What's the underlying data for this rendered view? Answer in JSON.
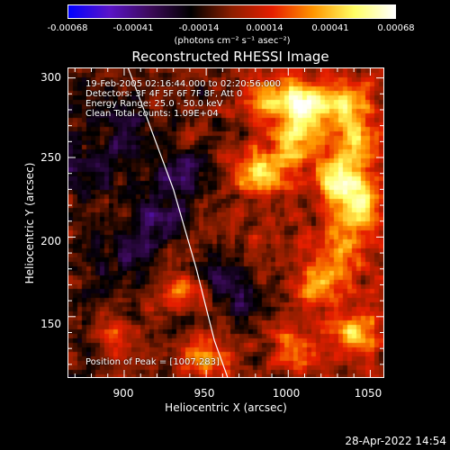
{
  "colorbar": {
    "ticks": [
      "-0.00068",
      "-0.00041",
      "-0.00014",
      "0.00014",
      "0.00041",
      "0.00068"
    ],
    "units": "(photons cm⁻² s⁻¹ asec⁻²)",
    "colors": [
      "#0000ff",
      "#5a14c8",
      "#3c0a5a",
      "#000000",
      "#8c1e00",
      "#e61e00",
      "#ff9600",
      "#ffff64",
      "#ffffff"
    ]
  },
  "chart_data": {
    "type": "heatmap",
    "title": "Reconstructed RHESSI Image",
    "xlabel": "Heliocentric X (arcsec)",
    "ylabel": "Heliocentric Y (arcsec)",
    "xlim": [
      866,
      1058
    ],
    "ylim": [
      112,
      306
    ],
    "xticks": [
      900,
      950,
      1000,
      1050
    ],
    "yticks": [
      150,
      200,
      250,
      300
    ],
    "value_range": [
      -0.00068,
      0.00068
    ],
    "peak": [
      1007,
      283
    ],
    "annotations": [
      "19-Feb-2005 02:16:44.000 to 02:20:56.000",
      "Detectors: 3F 4F 5F 6F 7F 8F, Att 0",
      "Energy Range: 25.0 - 50.0 keV",
      "Clean    Total counts: 1.09E+04"
    ],
    "peak_label": "Position of Peak = [1007,283]",
    "limb_curve": {
      "x": [
        865,
        890,
        912,
        930,
        944,
        955,
        963
      ],
      "y": [
        385,
        340,
        280,
        230,
        180,
        135,
        112
      ]
    },
    "bright_sources": [
      {
        "x": 1010,
        "y": 285,
        "strength": 1.0
      },
      {
        "x": 983,
        "y": 240,
        "strength": 0.9
      },
      {
        "x": 1030,
        "y": 235,
        "strength": 0.95
      },
      {
        "x": 1045,
        "y": 220,
        "strength": 0.7
      },
      {
        "x": 1005,
        "y": 262,
        "strength": 0.75
      },
      {
        "x": 1040,
        "y": 260,
        "strength": 0.7
      },
      {
        "x": 1035,
        "y": 285,
        "strength": 0.55
      },
      {
        "x": 950,
        "y": 125,
        "strength": 0.7
      },
      {
        "x": 985,
        "y": 285,
        "strength": 0.6
      },
      {
        "x": 1020,
        "y": 170,
        "strength": 0.55
      },
      {
        "x": 1040,
        "y": 140,
        "strength": 0.6
      },
      {
        "x": 1005,
        "y": 130,
        "strength": 0.45
      },
      {
        "x": 935,
        "y": 165,
        "strength": 0.45
      },
      {
        "x": 895,
        "y": 135,
        "strength": 0.4
      },
      {
        "x": 1030,
        "y": 190,
        "strength": 0.55
      }
    ],
    "negative_sources": [
      {
        "x": 920,
        "y": 215,
        "strength": 0.8
      },
      {
        "x": 935,
        "y": 240,
        "strength": 0.7
      },
      {
        "x": 905,
        "y": 190,
        "strength": 0.6
      },
      {
        "x": 900,
        "y": 265,
        "strength": 0.5
      },
      {
        "x": 960,
        "y": 175,
        "strength": 0.6
      },
      {
        "x": 880,
        "y": 240,
        "strength": 0.45
      },
      {
        "x": 975,
        "y": 160,
        "strength": 0.5
      }
    ]
  },
  "timestamp": "28-Apr-2022 14:54"
}
